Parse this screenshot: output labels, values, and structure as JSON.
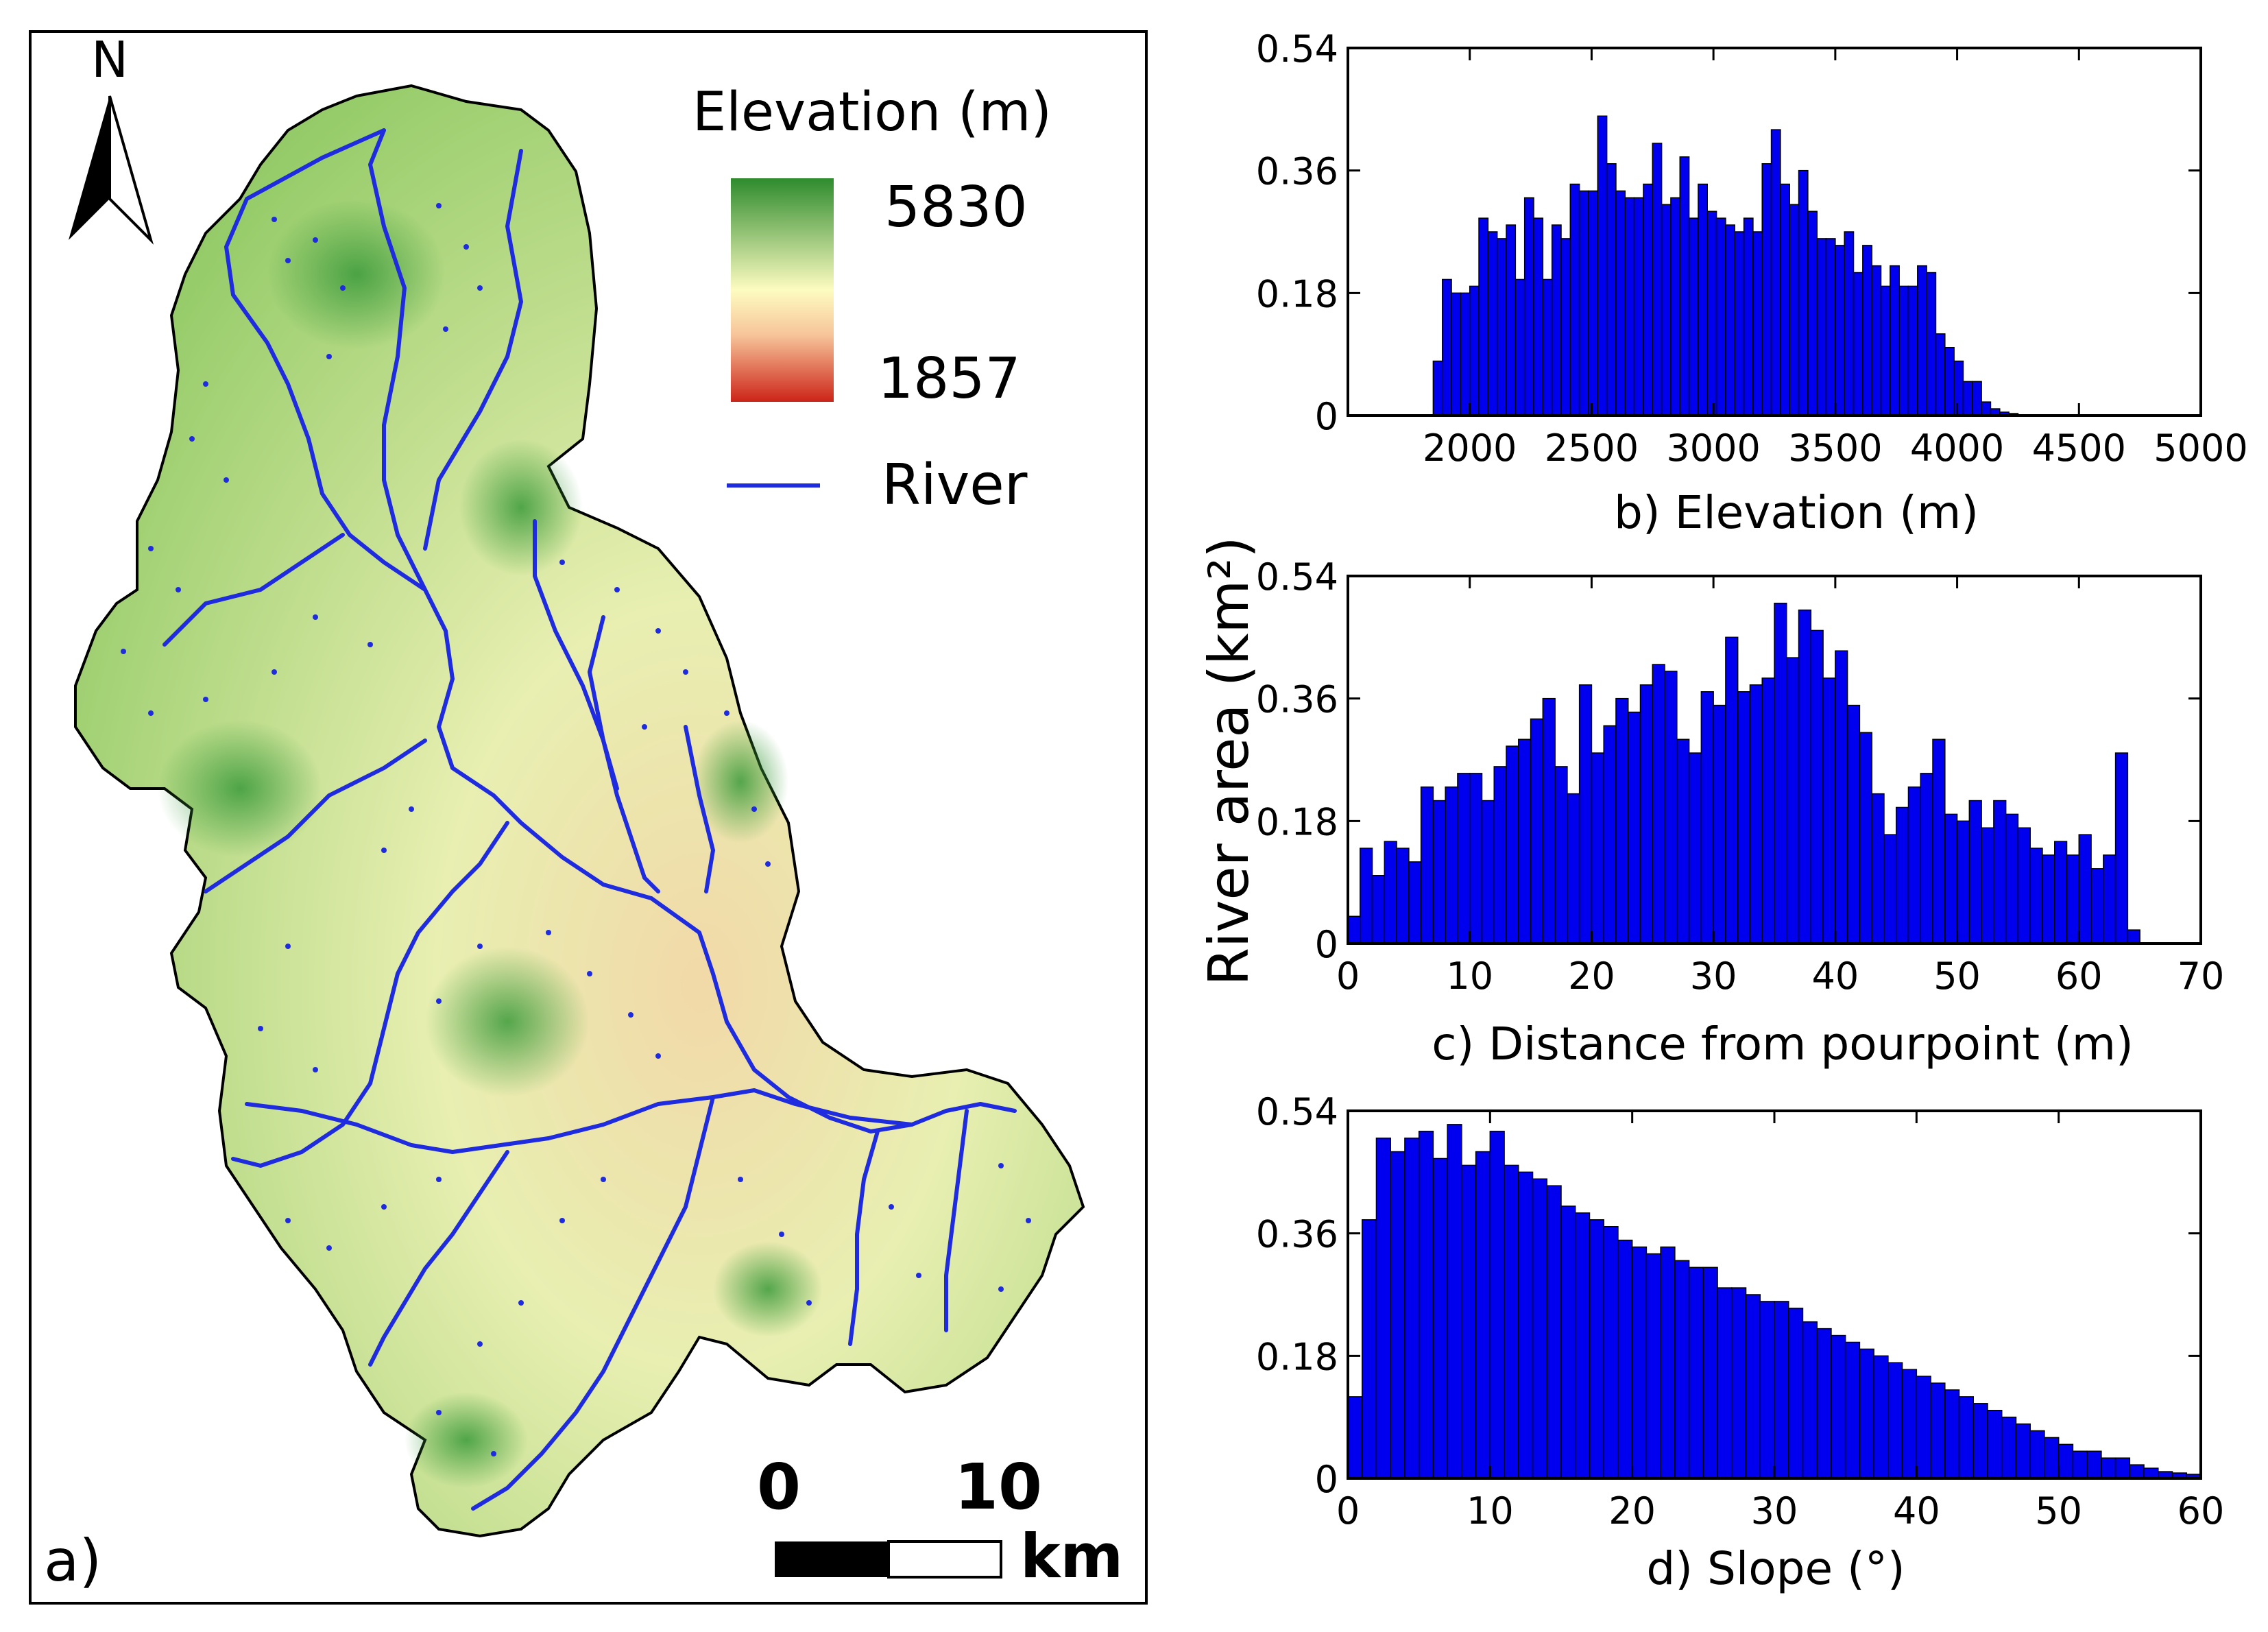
{
  "map_panel": {
    "north_label": "N",
    "legend_title": "Elevation (m)",
    "legend_max": "5830",
    "legend_min": "1857",
    "river_label": "River",
    "scale_zero": "0",
    "scale_ten": "10",
    "scale_unit": "km",
    "panel_label": "a)",
    "colors": {
      "ramp_high": "#2e8b2e",
      "ramp_mid": "#fdfcc0",
      "ramp_peach": "#f7c59a",
      "ramp_low": "#cc2418",
      "terrain_green": "#8dc862",
      "terrain_light": "#e8efb1",
      "terrain_valley": "#f2d9a8",
      "river": "#1f2bdf"
    }
  },
  "shared_ylabel": "River area (km²)",
  "chart_data": [
    {
      "id": "b",
      "type": "bar",
      "title": "",
      "xlabel": "b) Elevation (m)",
      "ylabel": "River area (km²)",
      "xlim": [
        1500,
        5000
      ],
      "ylim": [
        0,
        0.54
      ],
      "xticks": [
        2000,
        2500,
        3000,
        3500,
        4000,
        4500,
        5000
      ],
      "yticks": [
        0,
        0.18,
        0.36,
        0.54
      ],
      "ytick_labels": [
        "0",
        "0.18",
        "0.36",
        "0.54"
      ],
      "bin_start": 1850,
      "bin_width": 37.5,
      "color": "#0000ee",
      "values": [
        0.08,
        0.2,
        0.18,
        0.18,
        0.19,
        0.29,
        0.27,
        0.26,
        0.28,
        0.2,
        0.32,
        0.29,
        0.2,
        0.28,
        0.26,
        0.34,
        0.33,
        0.33,
        0.44,
        0.37,
        0.33,
        0.32,
        0.32,
        0.34,
        0.4,
        0.31,
        0.32,
        0.38,
        0.29,
        0.34,
        0.3,
        0.29,
        0.28,
        0.27,
        0.29,
        0.27,
        0.37,
        0.42,
        0.34,
        0.31,
        0.36,
        0.3,
        0.26,
        0.26,
        0.25,
        0.27,
        0.21,
        0.25,
        0.22,
        0.19,
        0.22,
        0.19,
        0.19,
        0.22,
        0.21,
        0.12,
        0.1,
        0.08,
        0.05,
        0.05,
        0.02,
        0.01,
        0.005,
        0.003,
        0.001
      ]
    },
    {
      "id": "c",
      "type": "bar",
      "title": "",
      "xlabel": "c) Distance from pourpoint (m)",
      "ylabel": "River area (km²)",
      "xlim": [
        0,
        70
      ],
      "ylim": [
        0,
        0.54
      ],
      "xticks": [
        0,
        10,
        20,
        30,
        40,
        50,
        60,
        70
      ],
      "yticks": [
        0,
        0.18,
        0.36,
        0.54
      ],
      "ytick_labels": [
        "0",
        "0.18",
        "0.36",
        "0.54"
      ],
      "bin_start": 0,
      "bin_width": 1,
      "color": "#0000ee",
      "values": [
        0.04,
        0.14,
        0.1,
        0.15,
        0.14,
        0.12,
        0.23,
        0.21,
        0.23,
        0.25,
        0.25,
        0.21,
        0.26,
        0.29,
        0.3,
        0.33,
        0.36,
        0.26,
        0.22,
        0.38,
        0.28,
        0.32,
        0.36,
        0.34,
        0.38,
        0.41,
        0.4,
        0.3,
        0.28,
        0.37,
        0.35,
        0.45,
        0.37,
        0.38,
        0.39,
        0.5,
        0.42,
        0.49,
        0.46,
        0.39,
        0.43,
        0.35,
        0.31,
        0.22,
        0.16,
        0.2,
        0.23,
        0.25,
        0.3,
        0.19,
        0.18,
        0.21,
        0.17,
        0.21,
        0.19,
        0.17,
        0.14,
        0.13,
        0.15,
        0.13,
        0.16,
        0.11,
        0.13,
        0.28,
        0.02
      ]
    },
    {
      "id": "d",
      "type": "bar",
      "title": "",
      "xlabel": "d) Slope (°)",
      "ylabel": "River area (km²)",
      "xlim": [
        0,
        60
      ],
      "ylim": [
        0,
        0.54
      ],
      "xticks": [
        0,
        10,
        20,
        30,
        40,
        50,
        60
      ],
      "yticks": [
        0,
        0.18,
        0.36,
        0.54
      ],
      "ytick_labels": [
        "0",
        "0.18",
        "0.36",
        "0.54"
      ],
      "bin_start": 0,
      "bin_width": 1,
      "color": "#0000ee",
      "values": [
        0.12,
        0.38,
        0.5,
        0.48,
        0.5,
        0.51,
        0.47,
        0.52,
        0.46,
        0.48,
        0.51,
        0.46,
        0.45,
        0.44,
        0.43,
        0.4,
        0.39,
        0.38,
        0.37,
        0.35,
        0.34,
        0.33,
        0.34,
        0.32,
        0.31,
        0.31,
        0.28,
        0.28,
        0.27,
        0.26,
        0.26,
        0.25,
        0.23,
        0.22,
        0.21,
        0.2,
        0.19,
        0.18,
        0.17,
        0.16,
        0.15,
        0.14,
        0.13,
        0.12,
        0.11,
        0.1,
        0.09,
        0.08,
        0.07,
        0.06,
        0.05,
        0.04,
        0.04,
        0.03,
        0.03,
        0.02,
        0.015,
        0.01,
        0.008,
        0.006
      ]
    }
  ]
}
